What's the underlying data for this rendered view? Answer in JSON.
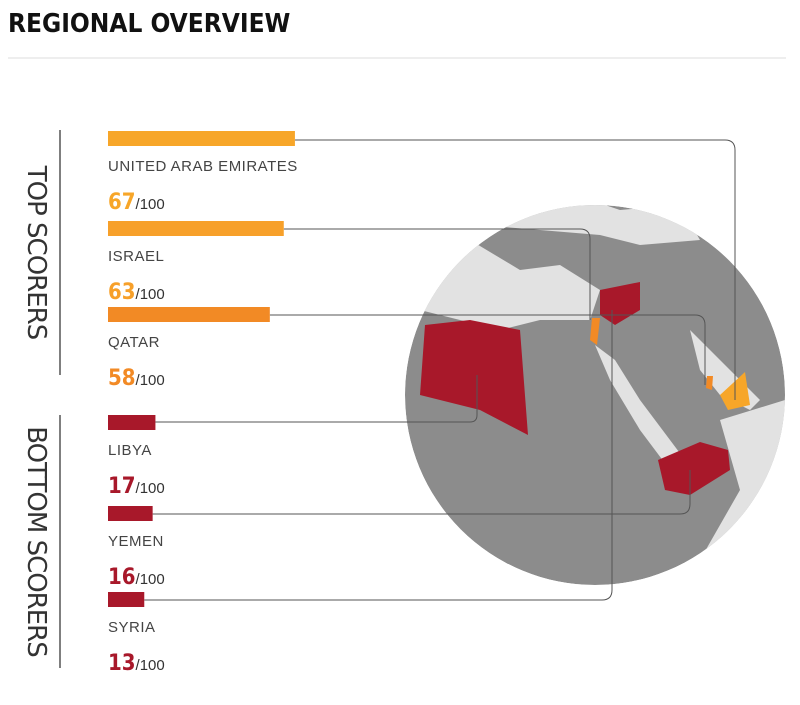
{
  "chart_data": {
    "type": "bar",
    "title": "REGIONAL OVERVIEW",
    "xlim": [
      0,
      100
    ],
    "suffix": "/100",
    "groups": [
      {
        "label": "TOP SCORERS",
        "categories": [
          "UNITED ARAB EMIRATES",
          "ISRAEL",
          "QATAR"
        ],
        "values": [
          67,
          63,
          58
        ],
        "colors": [
          "#f7a629",
          "#f7a02a",
          "#f28a25"
        ]
      },
      {
        "label": "BOTTOM SCORERS",
        "categories": [
          "LIBYA",
          "YEMEN",
          "SYRIA"
        ],
        "values": [
          17,
          16,
          13
        ],
        "colors": [
          "#a8182a",
          "#a8182a",
          "#a8182a"
        ]
      }
    ]
  }
}
